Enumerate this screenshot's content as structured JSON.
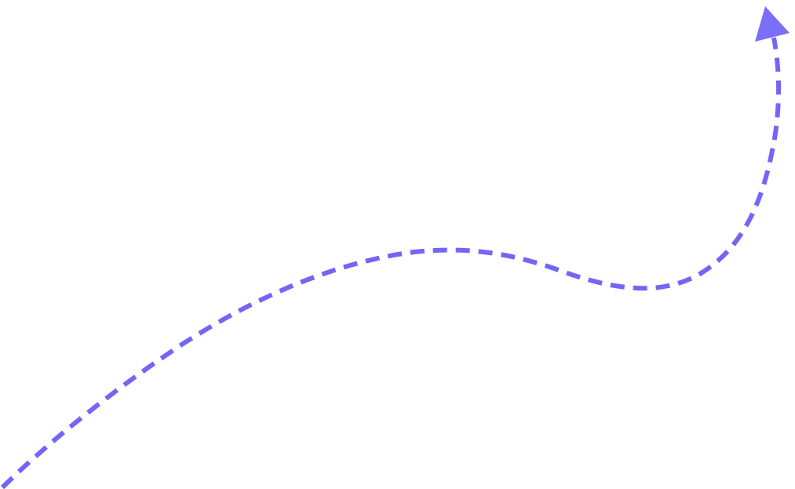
{
  "arrow": {
    "line_color": "#7366F6",
    "head_color": "#7B6FF8",
    "line_style": "dashed",
    "icon": "curved-dashed-arrow-icon"
  }
}
